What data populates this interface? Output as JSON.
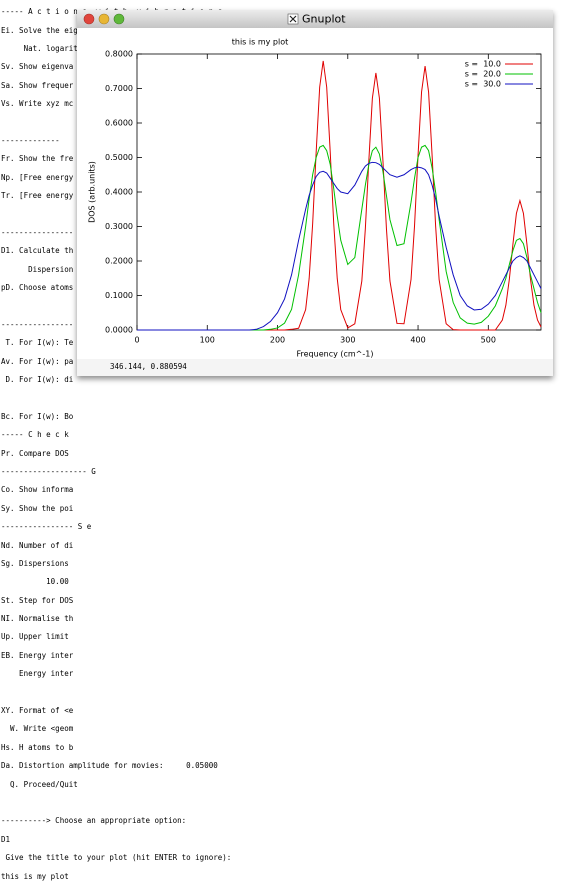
{
  "terminal": {
    "lines": [
      "----- A c t i o n s  w i t h  v i b r a t i o n s -----------",
      "Ei. Solve the eigenvalue problem (= Done!",
      "     Nat. logarit",
      "Sv. Show eigenva",
      "Sa. Show frequer",
      "Vs. Write xyz mc",
      "-------------",
      "Fr. Show the fre",
      "Np. [Free energy",
      "Tr. [Free energy",
      "----------------",
      "D1. Calculate th",
      "      Dispersion",
      "pD. Choose atoms",
      "----------------",
      " T. For I(w): Te",
      "Av. For I(w): pa",
      " D. For I(w): di",
      "Bc. For I(w): Bo",
      "----- C h e c k",
      "Pr. Compare DOS",
      "------------------- G",
      "Co. Show informa",
      "Sy. Show the poi",
      "---------------- S e",
      "Nd. Number of di",
      "Sg. Dispersions",
      "          10.00",
      "St. Step for DOS",
      "NI. Normalise th",
      "Up. Upper limit",
      "EB. Energy inter",
      "    Energy inter",
      "XY. Format of <e",
      "  W. Write <geom",
      "Hs. H atoms to b",
      "Da. Distortion amplitude for movies:     0.05000",
      "  Q. Proceed/Quit",
      "----------> Choose an appropriate option:",
      "D1",
      " Give the title to your plot (hit ENTER to ignore):",
      "this is my plot"
    ]
  },
  "window": {
    "title": "Gnuplot",
    "status": "346.144,  0.880594"
  },
  "chart_data": {
    "type": "line",
    "title": "this is my plot",
    "x_label": "Frequency (cm^-1)",
    "y_label": "DOS (arb.units)",
    "x": [
      0,
      160,
      170,
      180,
      190,
      200,
      210,
      220,
      230,
      240,
      245,
      250,
      255,
      260,
      265,
      270,
      275,
      280,
      285,
      290,
      300,
      310,
      320,
      325,
      330,
      335,
      340,
      345,
      350,
      355,
      360,
      370,
      380,
      390,
      395,
      400,
      405,
      410,
      415,
      420,
      425,
      430,
      440,
      450,
      460,
      470,
      480,
      490,
      500,
      510,
      520,
      525,
      530,
      535,
      540,
      545,
      550,
      555,
      560,
      565,
      570,
      575
    ],
    "series": [
      {
        "name": "s =  10.0",
        "color": "#e00000",
        "values": [
          0,
          0,
          0,
          0,
          0,
          0,
          0,
          0.002,
          0.005,
          0.059,
          0.149,
          0.308,
          0.516,
          0.704,
          0.78,
          0.704,
          0.516,
          0.308,
          0.149,
          0.059,
          0.006,
          0.018,
          0.142,
          0.294,
          0.492,
          0.672,
          0.745,
          0.672,
          0.492,
          0.294,
          0.142,
          0.019,
          0.018,
          0.146,
          0.302,
          0.506,
          0.69,
          0.765,
          0.69,
          0.506,
          0.302,
          0.146,
          0.018,
          0.001,
          0,
          0,
          0,
          0,
          0,
          0,
          0.029,
          0.072,
          0.148,
          0.248,
          0.338,
          0.375,
          0.338,
          0.248,
          0.148,
          0.072,
          0.029,
          0.009
        ]
      },
      {
        "name": "s =  20.0",
        "color": "#00c000",
        "values": [
          0,
          0,
          0,
          0,
          0.002,
          0.006,
          0.02,
          0.06,
          0.16,
          0.3,
          0.38,
          0.45,
          0.5,
          0.53,
          0.535,
          0.52,
          0.48,
          0.41,
          0.33,
          0.26,
          0.19,
          0.21,
          0.35,
          0.42,
          0.48,
          0.52,
          0.53,
          0.51,
          0.46,
          0.39,
          0.32,
          0.245,
          0.25,
          0.37,
          0.44,
          0.5,
          0.53,
          0.535,
          0.52,
          0.47,
          0.4,
          0.32,
          0.17,
          0.08,
          0.035,
          0.02,
          0.017,
          0.022,
          0.04,
          0.07,
          0.12,
          0.15,
          0.19,
          0.23,
          0.26,
          0.265,
          0.25,
          0.21,
          0.16,
          0.12,
          0.08,
          0.05
        ]
      },
      {
        "name": "s =  30.0",
        "color": "#1010c0",
        "values": [
          0,
          0,
          0.002,
          0.01,
          0.025,
          0.05,
          0.09,
          0.16,
          0.26,
          0.35,
          0.39,
          0.42,
          0.445,
          0.457,
          0.46,
          0.455,
          0.44,
          0.425,
          0.41,
          0.4,
          0.395,
          0.42,
          0.46,
          0.475,
          0.483,
          0.486,
          0.485,
          0.48,
          0.47,
          0.46,
          0.45,
          0.443,
          0.45,
          0.465,
          0.47,
          0.472,
          0.47,
          0.465,
          0.45,
          0.42,
          0.38,
          0.33,
          0.24,
          0.16,
          0.1,
          0.07,
          0.058,
          0.06,
          0.075,
          0.1,
          0.14,
          0.16,
          0.18,
          0.2,
          0.21,
          0.215,
          0.21,
          0.2,
          0.18,
          0.16,
          0.14,
          0.12
        ]
      }
    ],
    "xlim": [
      0,
      575
    ],
    "ylim": [
      0,
      0.8
    ],
    "xticks": [
      0,
      100,
      200,
      300,
      400,
      500
    ],
    "yticks": [
      {
        "value": 0,
        "label": "0.0000"
      },
      {
        "value": 0.1,
        "label": "0.1000"
      },
      {
        "value": 0.2,
        "label": "0.2000"
      },
      {
        "value": 0.3,
        "label": "0.3000"
      },
      {
        "value": 0.4,
        "label": "0.4000"
      },
      {
        "value": 0.5,
        "label": "0.5000"
      },
      {
        "value": 0.6,
        "label": "0.6000"
      },
      {
        "value": 0.7,
        "label": "0.7000"
      },
      {
        "value": 0.8,
        "label": "0.8000"
      }
    ],
    "legend": "top-right"
  }
}
